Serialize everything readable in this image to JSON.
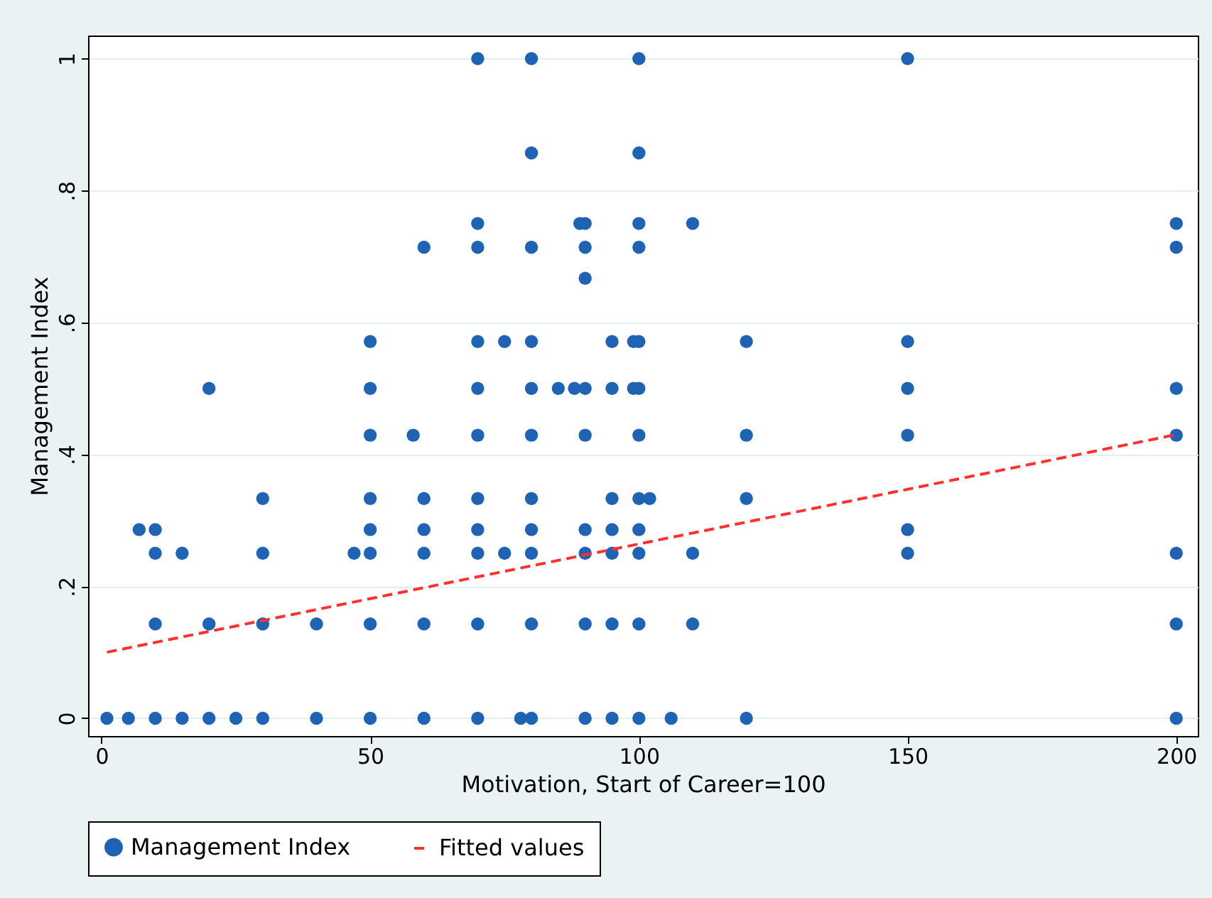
{
  "chart_data": {
    "type": "scatter",
    "xlabel": "Motivation, Start of Career=100",
    "ylabel": "Management Index",
    "xlim": [
      -2.5,
      204
    ],
    "ylim": [
      -0.027,
      1.035
    ],
    "xticks": [
      0,
      50,
      100,
      150,
      200
    ],
    "yticks": [
      {
        "value": 0,
        "label": "0"
      },
      {
        "value": 0.2,
        "label": ".2"
      },
      {
        "value": 0.4,
        "label": ".4"
      },
      {
        "value": 0.6,
        "label": ".6"
      },
      {
        "value": 0.8,
        "label": ".8"
      },
      {
        "value": 1,
        "label": "1"
      }
    ],
    "grid": "y",
    "legend": "bottom",
    "series": [
      {
        "name": "Management Index",
        "marker": "circle",
        "color": "#1f63b5",
        "x": [
          1,
          5,
          10,
          15,
          20,
          25,
          30,
          40,
          50,
          60,
          70,
          78,
          80,
          90,
          95,
          100,
          106,
          120,
          200,
          10,
          20,
          30,
          40,
          50,
          60,
          70,
          80,
          90,
          95,
          100,
          110,
          200,
          10,
          15,
          30,
          47,
          50,
          60,
          70,
          75,
          80,
          90,
          95,
          100,
          110,
          150,
          200,
          7,
          10,
          50,
          60,
          70,
          80,
          90,
          95,
          100,
          150,
          30,
          50,
          60,
          70,
          80,
          95,
          100,
          102,
          120,
          50,
          58,
          70,
          80,
          90,
          100,
          120,
          150,
          200,
          20,
          50,
          70,
          80,
          85,
          88,
          90,
          95,
          99,
          100,
          150,
          200,
          50,
          70,
          75,
          80,
          95,
          99,
          100,
          120,
          150,
          90,
          60,
          70,
          80,
          90,
          100,
          200,
          70,
          89,
          90,
          100,
          110,
          200,
          80,
          100,
          70,
          80,
          100,
          150
        ],
        "values": [
          0,
          0,
          0,
          0,
          0,
          0,
          0,
          0,
          0,
          0,
          0,
          0,
          0,
          0,
          0,
          0,
          0,
          0,
          0,
          0.143,
          0.143,
          0.143,
          0.143,
          0.143,
          0.143,
          0.143,
          0.143,
          0.143,
          0.143,
          0.143,
          0.143,
          0.143,
          0.25,
          0.25,
          0.25,
          0.25,
          0.25,
          0.25,
          0.25,
          0.25,
          0.25,
          0.25,
          0.25,
          0.25,
          0.25,
          0.25,
          0.25,
          0.286,
          0.286,
          0.286,
          0.286,
          0.286,
          0.286,
          0.286,
          0.286,
          0.286,
          0.286,
          0.333,
          0.333,
          0.333,
          0.333,
          0.333,
          0.333,
          0.333,
          0.333,
          0.333,
          0.429,
          0.429,
          0.429,
          0.429,
          0.429,
          0.429,
          0.429,
          0.429,
          0.429,
          0.5,
          0.5,
          0.5,
          0.5,
          0.5,
          0.5,
          0.5,
          0.5,
          0.5,
          0.5,
          0.5,
          0.5,
          0.571,
          0.571,
          0.571,
          0.571,
          0.571,
          0.571,
          0.571,
          0.571,
          0.571,
          0.667,
          0.714,
          0.714,
          0.714,
          0.714,
          0.714,
          0.714,
          0.75,
          0.75,
          0.75,
          0.75,
          0.75,
          0.75,
          0.857,
          0.857,
          1,
          1,
          1,
          1
        ]
      },
      {
        "name": "Fitted values",
        "type": "line",
        "color": "#ff3030",
        "line_style": "dashed",
        "x": [
          1,
          200
        ],
        "values": [
          0.1,
          0.43
        ]
      }
    ]
  }
}
